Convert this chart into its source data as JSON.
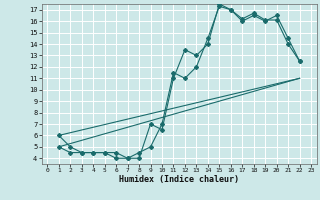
{
  "xlabel": "Humidex (Indice chaleur)",
  "background_color": "#cde8e8",
  "grid_color": "#ffffff",
  "line_color": "#1a6b6b",
  "xlim": [
    -0.5,
    23.5
  ],
  "ylim": [
    3.5,
    17.5
  ],
  "xticks": [
    0,
    1,
    2,
    3,
    4,
    5,
    6,
    7,
    8,
    9,
    10,
    11,
    12,
    13,
    14,
    15,
    16,
    17,
    18,
    19,
    20,
    21,
    22,
    23
  ],
  "yticks": [
    4,
    5,
    6,
    7,
    8,
    9,
    10,
    11,
    12,
    13,
    14,
    15,
    16,
    17
  ],
  "line1_x": [
    1,
    2,
    3,
    4,
    5,
    6,
    7,
    8,
    9,
    10,
    11,
    12,
    13,
    14,
    15,
    16,
    17,
    18,
    19,
    20,
    21,
    22
  ],
  "line1_y": [
    6,
    5,
    4.5,
    4.5,
    4.5,
    4,
    4,
    4.5,
    5,
    7,
    11.5,
    11,
    12,
    14.5,
    17.3,
    17,
    16.2,
    16.7,
    16.1,
    16.1,
    14,
    12.5
  ],
  "line2_x": [
    1,
    2,
    3,
    4,
    5,
    6,
    7,
    8,
    9,
    10,
    11,
    12,
    13,
    14,
    15,
    16,
    17,
    18,
    19,
    20,
    21,
    22
  ],
  "line2_y": [
    5,
    4.5,
    4.5,
    4.5,
    4.5,
    4.5,
    4,
    4,
    7,
    6.5,
    11,
    13.5,
    13,
    14,
    17.5,
    17,
    16,
    16.5,
    16,
    16.5,
    14.5,
    12.5
  ],
  "line3_x": [
    1,
    22
  ],
  "line3_y": [
    5,
    11
  ],
  "line4_x": [
    1,
    22
  ],
  "line4_y": [
    6,
    11
  ]
}
